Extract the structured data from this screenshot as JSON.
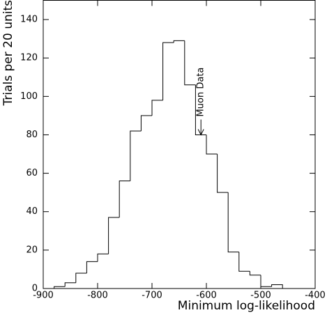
{
  "chart_data": {
    "type": "histogram",
    "xlabel": "Minimum log-likelihood",
    "ylabel": "Trials per 20 units",
    "bins": [
      -880,
      -860,
      -840,
      -820,
      -800,
      -780,
      -760,
      -740,
      -720,
      -700,
      -680,
      -660,
      -640,
      -620,
      -600,
      -580,
      -560,
      -540,
      -520,
      -500,
      -480,
      -460
    ],
    "counts": [
      1,
      3,
      8,
      14,
      18,
      37,
      56,
      82,
      90,
      98,
      128,
      129,
      106,
      80,
      70,
      50,
      19,
      9,
      7,
      1,
      2
    ],
    "color": "#000000",
    "xlim": [
      -900,
      -400
    ],
    "xticks": [
      -900,
      -800,
      -700,
      -600,
      -500,
      -400
    ],
    "ylim": [
      0,
      150
    ],
    "yticks": [
      0,
      20,
      40,
      60,
      80,
      100,
      120,
      140
    ],
    "annotation": {
      "text": "Muon Data",
      "x": -610,
      "y": 80
    }
  }
}
